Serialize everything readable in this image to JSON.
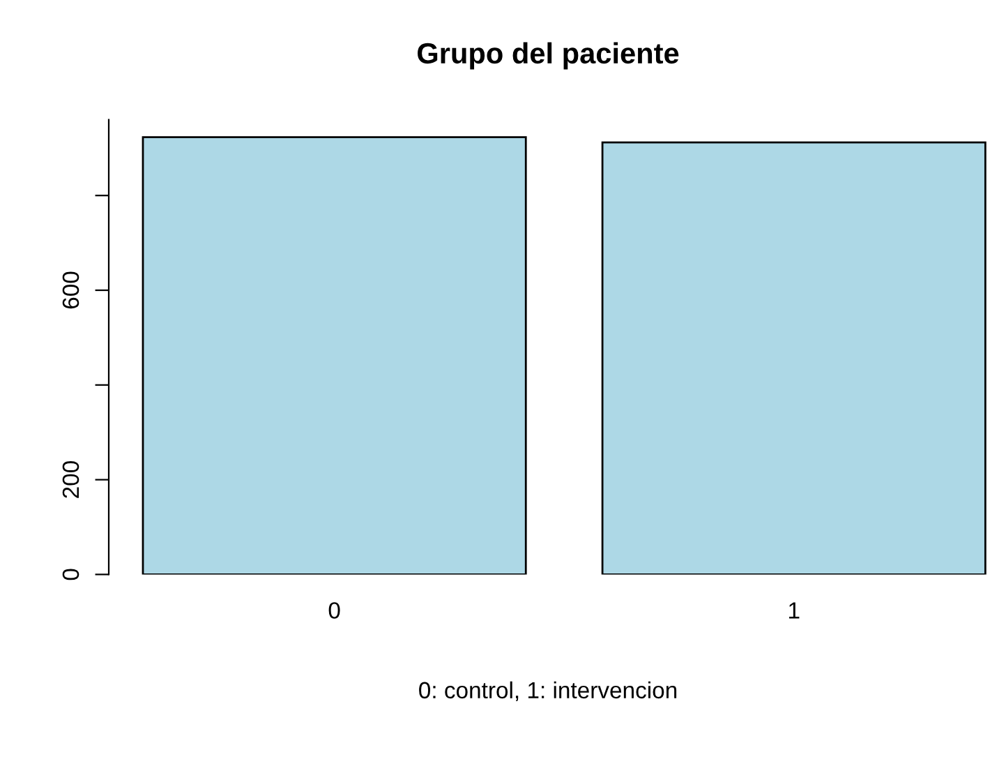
{
  "chart_data": {
    "type": "bar",
    "title": "Grupo del paciente",
    "xlabel": "0: control, 1: intervencion",
    "categories": [
      "0",
      "1"
    ],
    "values": [
      923,
      912
    ],
    "color": "#add8e6",
    "ylim": [
      0,
      960
    ],
    "yticks": [
      0,
      200,
      {
        "value": 400,
        "label": null
      },
      600,
      {
        "value": 800,
        "label": null
      }
    ]
  }
}
